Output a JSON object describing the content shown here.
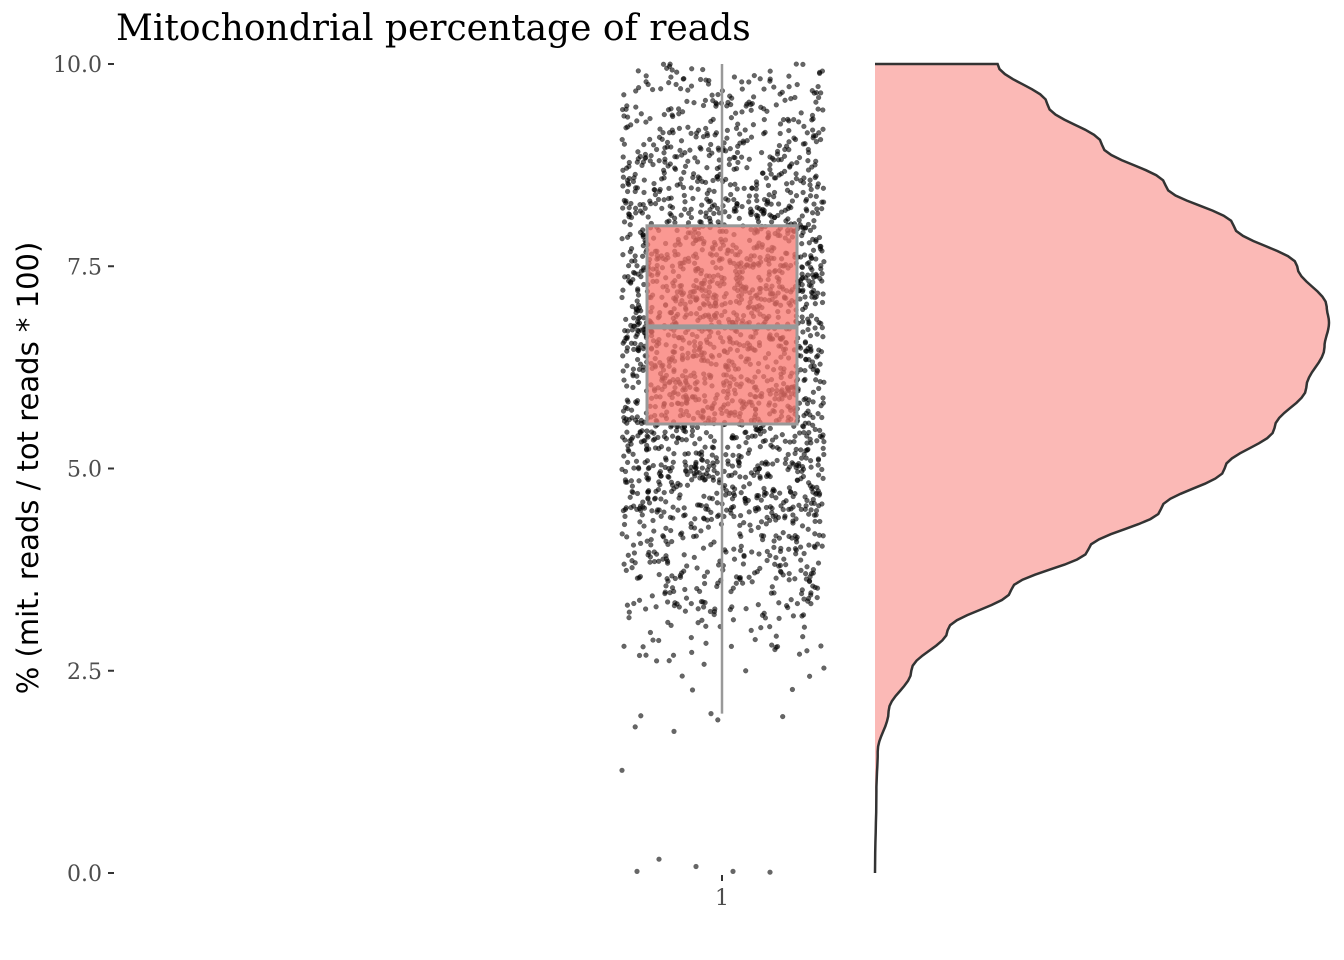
{
  "chart_data": {
    "type": "raincloud",
    "title": "Mitochondrial percentage of reads",
    "ylabel": "% (mit. reads / tot reads * 100)",
    "xlabel": "",
    "ylim": [
      0,
      10
    ],
    "y_ticks": [
      "0.0",
      "2.5",
      "5.0",
      "7.5",
      "10.0"
    ],
    "x_ticks": [
      "1"
    ],
    "grid": false,
    "legend": "none",
    "box": {
      "category": "1",
      "whisker_low": 1.97,
      "q1": 5.55,
      "median": 6.75,
      "q3": 8.0,
      "whisker_high": 10.0
    },
    "density": [
      {
        "y": 0.0,
        "d": 0.0
      },
      {
        "y": 1.0,
        "d": 0.003
      },
      {
        "y": 1.5,
        "d": 0.006
      },
      {
        "y": 2.0,
        "d": 0.03
      },
      {
        "y": 2.5,
        "d": 0.08
      },
      {
        "y": 3.0,
        "d": 0.16
      },
      {
        "y": 3.5,
        "d": 0.3
      },
      {
        "y": 4.0,
        "d": 0.47
      },
      {
        "y": 4.5,
        "d": 0.63
      },
      {
        "y": 5.0,
        "d": 0.77
      },
      {
        "y": 5.5,
        "d": 0.88
      },
      {
        "y": 6.0,
        "d": 0.95
      },
      {
        "y": 6.5,
        "d": 0.99
      },
      {
        "y": 6.8,
        "d": 1.0
      },
      {
        "y": 7.0,
        "d": 0.995
      },
      {
        "y": 7.5,
        "d": 0.93
      },
      {
        "y": 8.0,
        "d": 0.79
      },
      {
        "y": 8.5,
        "d": 0.64
      },
      {
        "y": 9.0,
        "d": 0.5
      },
      {
        "y": 9.5,
        "d": 0.38
      },
      {
        "y": 10.0,
        "d": 0.27
      }
    ],
    "outliers": [
      1.27,
      0.17,
      0.08,
      0.02,
      0.01,
      0.02,
      1.75,
      1.97
    ],
    "colors": {
      "box_fill": "#F8766D",
      "box_line": "#999999",
      "violin_fill": "#FBB9B6",
      "violin_line": "#333333",
      "points": "#000000"
    }
  }
}
